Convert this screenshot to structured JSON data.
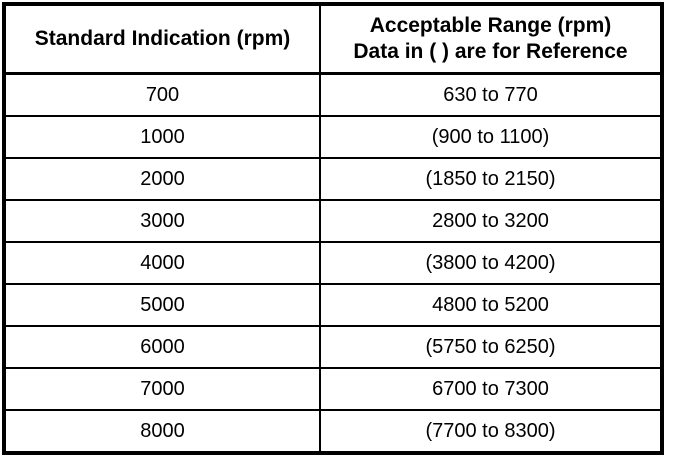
{
  "table": {
    "header": {
      "col1": "Standard Indication (rpm)",
      "col2_line1": "Acceptable Range (rpm)",
      "col2_line2": "Data in ( ) are for Reference"
    },
    "rows": [
      {
        "standard": "700",
        "range": "630 to 770"
      },
      {
        "standard": "1000",
        "range": "(900 to 1100)"
      },
      {
        "standard": "2000",
        "range": "(1850 to 2150)"
      },
      {
        "standard": "3000",
        "range": "2800 to 3200"
      },
      {
        "standard": "4000",
        "range": "(3800 to 4200)"
      },
      {
        "standard": "5000",
        "range": "4800 to 5200"
      },
      {
        "standard": "6000",
        "range": "(5750 to 6250)"
      },
      {
        "standard": "7000",
        "range": "6700 to 7300"
      },
      {
        "standard": "8000",
        "range": "(7700 to 8300)"
      }
    ],
    "colors": {
      "border": "#000000",
      "background": "#ffffff",
      "text": "#000000"
    }
  }
}
